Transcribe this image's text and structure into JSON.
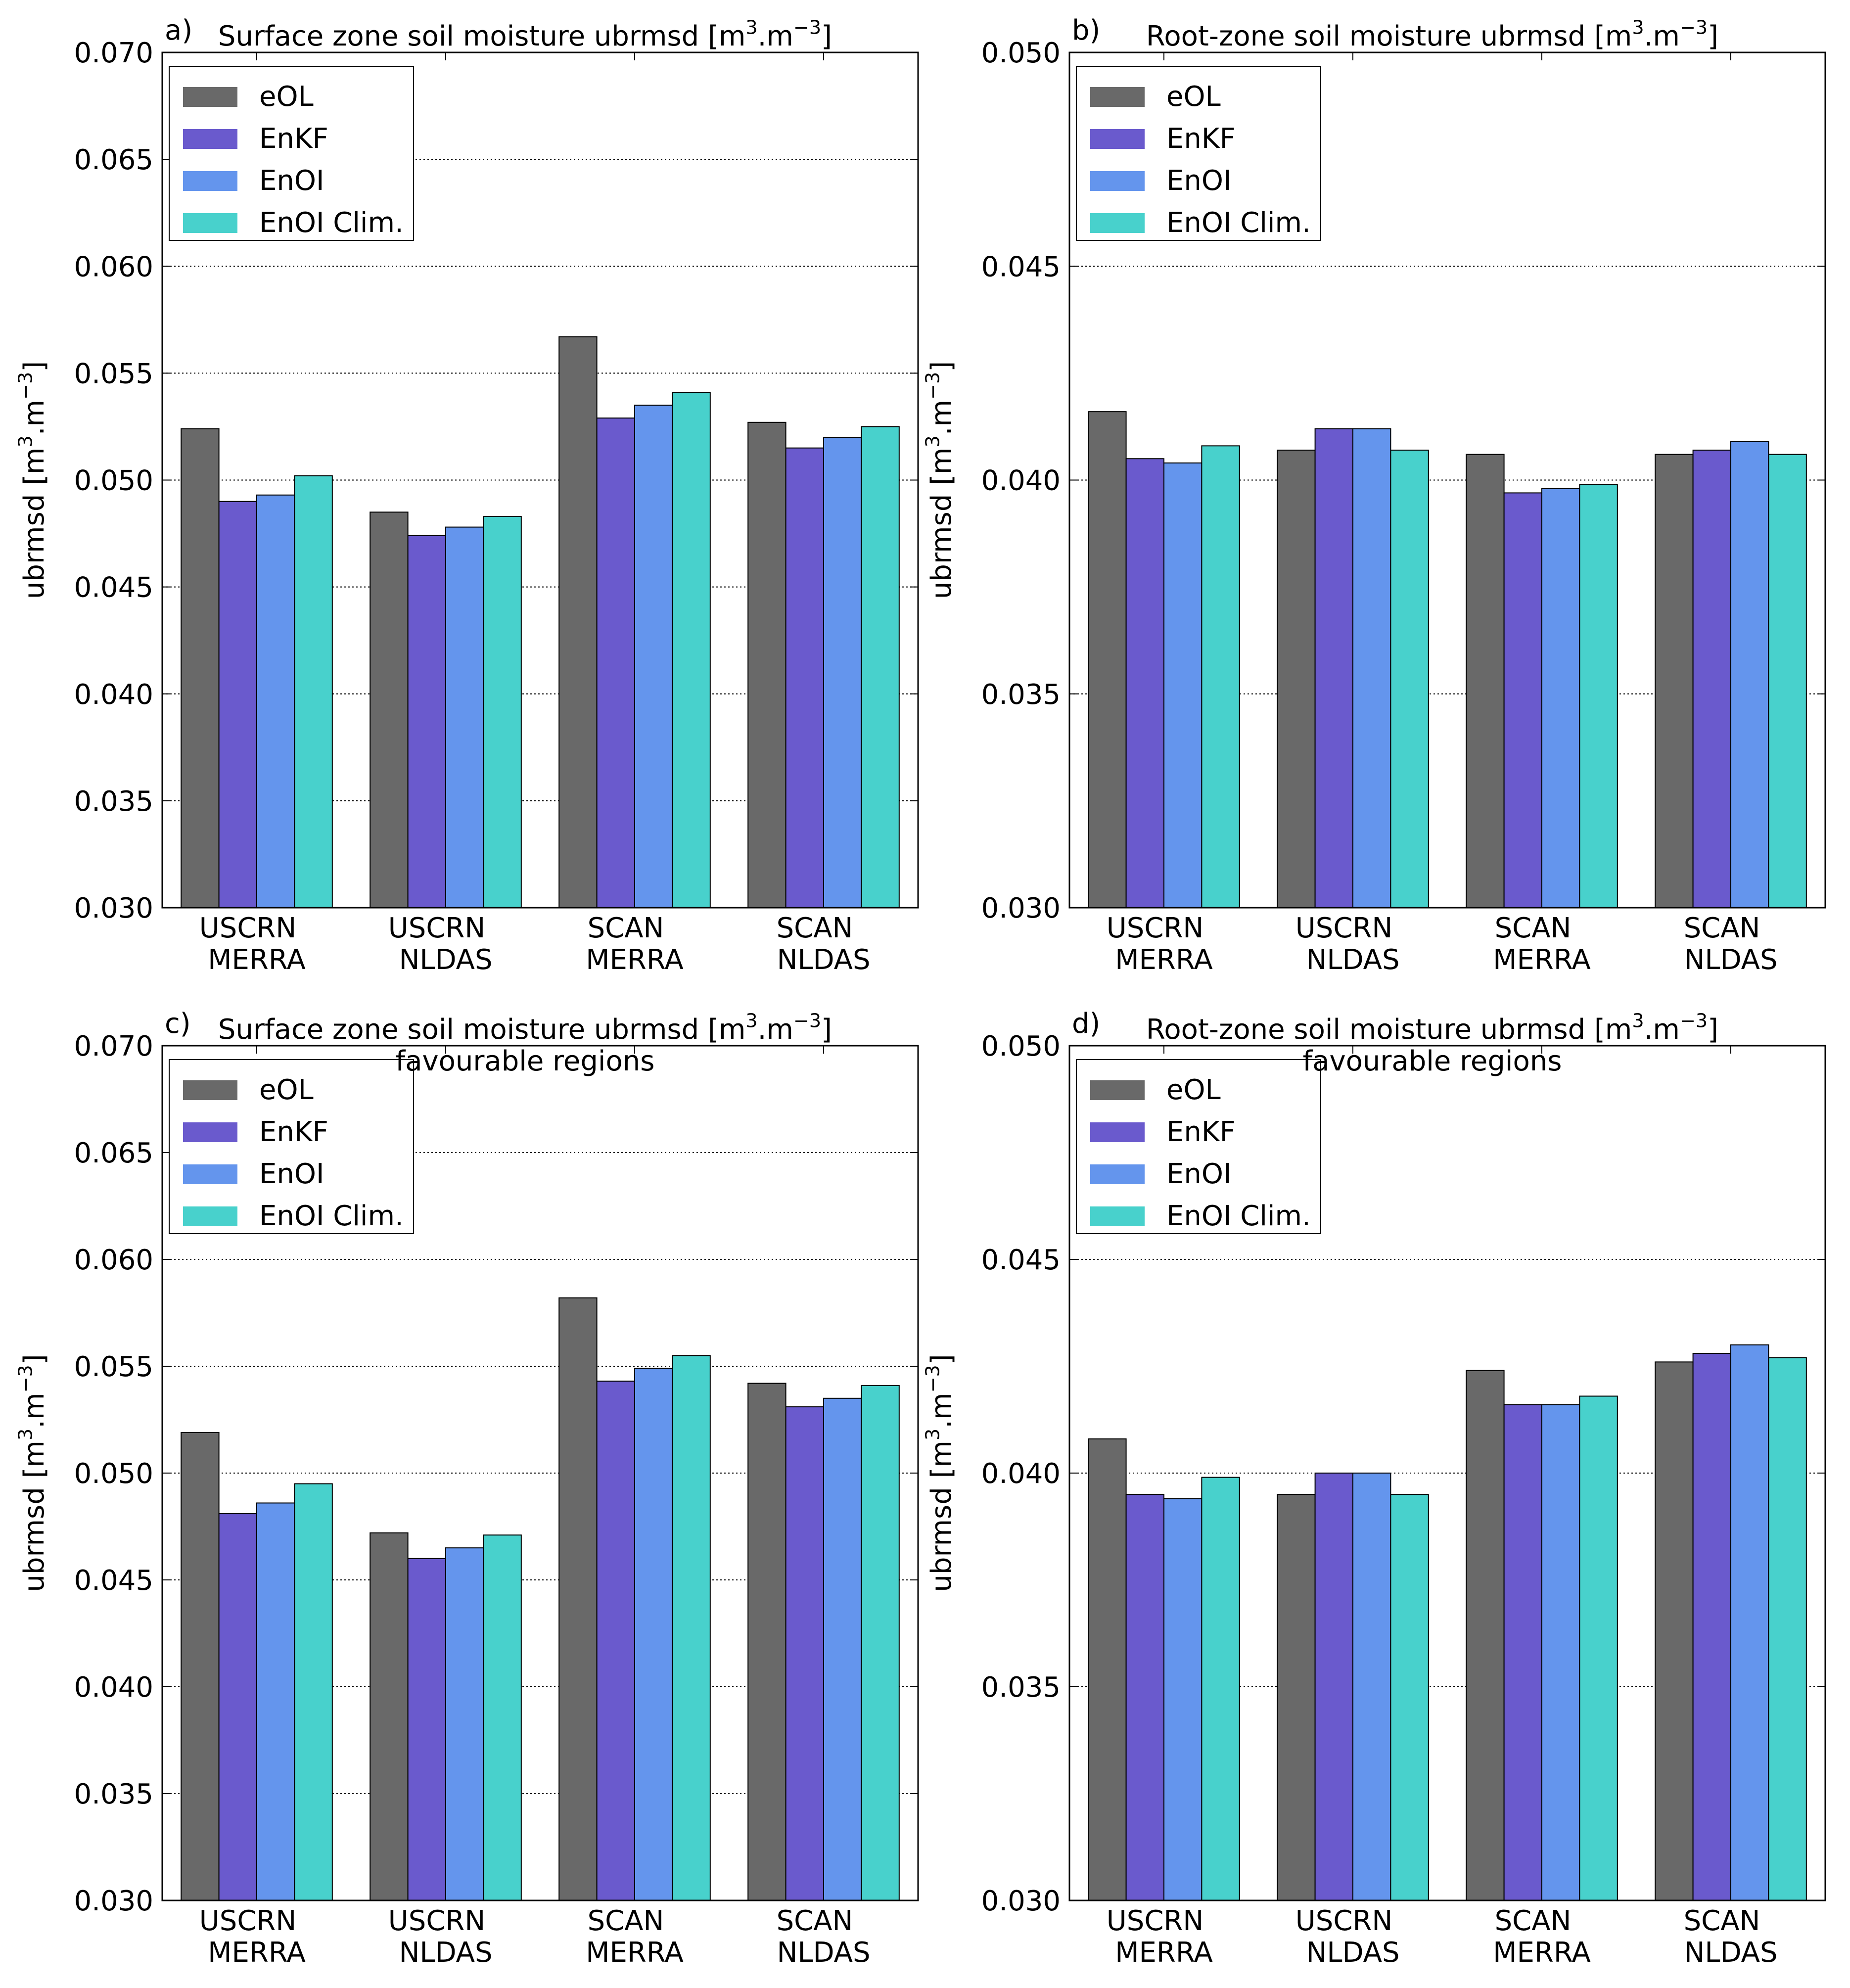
{
  "chart_data": [
    {
      "type": "bar",
      "panel": "a)",
      "title": "Surface zone soil moisture ubrmsd",
      "title_line2": "",
      "title_unit": [
        "[m",
        "3",
        ".m",
        "−3",
        "]"
      ],
      "ylabel": [
        "ubrmsd [m",
        "3",
        ".m",
        "−3",
        "]"
      ],
      "ylim": [
        0.03,
        0.07
      ],
      "yticks": [
        "0.030",
        "0.035",
        "0.040",
        "0.045",
        "0.050",
        "0.055",
        "0.060",
        "0.065",
        "0.070"
      ],
      "categories": [
        [
          "USCRN",
          "MERRA"
        ],
        [
          "USCRN",
          "NLDAS"
        ],
        [
          "SCAN",
          "MERRA"
        ],
        [
          "SCAN",
          "NLDAS"
        ]
      ],
      "series": [
        {
          "name": "eOL",
          "values": [
            0.0524,
            0.0485,
            0.0567,
            0.0527
          ]
        },
        {
          "name": "EnKF",
          "values": [
            0.049,
            0.0474,
            0.0529,
            0.0515
          ]
        },
        {
          "name": "EnOI",
          "values": [
            0.0493,
            0.0478,
            0.0535,
            0.052
          ]
        },
        {
          "name": "EnOI Clim.",
          "values": [
            0.0502,
            0.0483,
            0.0541,
            0.0525
          ]
        }
      ],
      "grid": "y",
      "legend": "top-left"
    },
    {
      "type": "bar",
      "panel": "b)",
      "title": "Root-zone soil moisture ubrmsd",
      "title_line2": "",
      "title_unit": [
        "[m",
        "3",
        ".m",
        "−3",
        "]"
      ],
      "ylabel": [
        "ubrmsd [m",
        "3",
        ".m",
        "−3",
        "]"
      ],
      "ylim": [
        0.03,
        0.05
      ],
      "yticks": [
        "0.030",
        "0.035",
        "0.040",
        "0.045",
        "0.050"
      ],
      "categories": [
        [
          "USCRN",
          "MERRA"
        ],
        [
          "USCRN",
          "NLDAS"
        ],
        [
          "SCAN",
          "MERRA"
        ],
        [
          "SCAN",
          "NLDAS"
        ]
      ],
      "series": [
        {
          "name": "eOL",
          "values": [
            0.0416,
            0.0407,
            0.0406,
            0.0406
          ]
        },
        {
          "name": "EnKF",
          "values": [
            0.0405,
            0.0412,
            0.0397,
            0.0407
          ]
        },
        {
          "name": "EnOI",
          "values": [
            0.0404,
            0.0412,
            0.0398,
            0.0409
          ]
        },
        {
          "name": "EnOI Clim.",
          "values": [
            0.0408,
            0.0407,
            0.0399,
            0.0406
          ]
        }
      ],
      "grid": "y",
      "legend": "top-left"
    },
    {
      "type": "bar",
      "panel": "c)",
      "title": "Surface zone soil moisture ubrmsd",
      "title_line2": "favourable regions",
      "title_unit": [
        "[m",
        "3",
        ".m",
        "−3",
        "]"
      ],
      "ylabel": [
        "ubrmsd [m",
        "3",
        ".m",
        "−3",
        "]"
      ],
      "ylim": [
        0.03,
        0.07
      ],
      "yticks": [
        "0.030",
        "0.035",
        "0.040",
        "0.045",
        "0.050",
        "0.055",
        "0.060",
        "0.065",
        "0.070"
      ],
      "categories": [
        [
          "USCRN",
          "MERRA"
        ],
        [
          "USCRN",
          "NLDAS"
        ],
        [
          "SCAN",
          "MERRA"
        ],
        [
          "SCAN",
          "NLDAS"
        ]
      ],
      "series": [
        {
          "name": "eOL",
          "values": [
            0.0519,
            0.0472,
            0.0582,
            0.0542
          ]
        },
        {
          "name": "EnKF",
          "values": [
            0.0481,
            0.046,
            0.0543,
            0.0531
          ]
        },
        {
          "name": "EnOI",
          "values": [
            0.0486,
            0.0465,
            0.0549,
            0.0535
          ]
        },
        {
          "name": "EnOI Clim.",
          "values": [
            0.0495,
            0.0471,
            0.0555,
            0.0541
          ]
        }
      ],
      "grid": "y",
      "legend": "top-left"
    },
    {
      "type": "bar",
      "panel": "d)",
      "title": "Root-zone soil moisture ubrmsd",
      "title_line2": "favourable regions",
      "title_unit": [
        "[m",
        "3",
        ".m",
        "−3",
        "]"
      ],
      "ylabel": [
        "ubrmsd [m",
        "3",
        ".m",
        "−3",
        "]"
      ],
      "ylim": [
        0.03,
        0.05
      ],
      "yticks": [
        "0.030",
        "0.035",
        "0.040",
        "0.045",
        "0.050"
      ],
      "categories": [
        [
          "USCRN",
          "MERRA"
        ],
        [
          "USCRN",
          "NLDAS"
        ],
        [
          "SCAN",
          "MERRA"
        ],
        [
          "SCAN",
          "NLDAS"
        ]
      ],
      "series": [
        {
          "name": "eOL",
          "values": [
            0.0408,
            0.0395,
            0.0424,
            0.0426
          ]
        },
        {
          "name": "EnKF",
          "values": [
            0.0395,
            0.04,
            0.0416,
            0.0428
          ]
        },
        {
          "name": "EnOI",
          "values": [
            0.0394,
            0.04,
            0.0416,
            0.043
          ]
        },
        {
          "name": "EnOI Clim.",
          "values": [
            0.0399,
            0.0395,
            0.0418,
            0.0427
          ]
        }
      ],
      "grid": "y",
      "legend": "top-left"
    }
  ],
  "colors": {
    "eOL": "#696969",
    "EnKF": "#6a5acd",
    "EnOI": "#6495ed",
    "EnOI Clim.": "#48d1cc"
  }
}
